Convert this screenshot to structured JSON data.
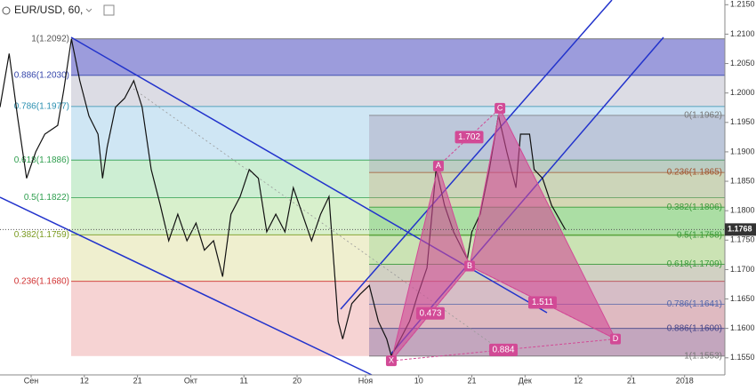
{
  "header": {
    "symbol": "EUR/USD, 60,"
  },
  "chart_data": {
    "type": "line",
    "color": "#111111",
    "x": [
      -4.1,
      -2.9,
      -1.8,
      -0.6,
      0.6,
      1.8,
      3.5,
      4.3,
      5.3,
      6.4,
      7.6,
      8.8,
      9.4,
      10.0,
      11.1,
      12.3,
      13.5,
      14.6,
      15.8,
      17.0,
      18.1,
      19.3,
      20.5,
      21.7,
      22.8,
      24.0,
      25.2,
      26.3,
      27.5,
      28.7,
      29.9,
      31.0,
      32.2,
      33.4,
      34.5,
      35.7,
      36.9,
      38.1,
      39.2,
      39.8,
      40.4,
      41.0,
      42.2,
      43.3,
      44.5,
      45.7,
      46.8,
      47.4,
      48.6,
      49.8,
      50.9,
      52.1,
      53.3,
      54.4,
      55.6,
      56.8,
      57.4,
      58.0,
      59.1,
      60.3,
      61.5,
      62.6,
      63.8,
      64.4,
      65.6,
      66.2,
      67.3,
      68.5,
      70.3
    ],
    "values": [
      1.1976,
      1.2067,
      1.1961,
      1.1855,
      1.19,
      1.193,
      1.1945,
      1.2006,
      1.2092,
      1.2021,
      1.1961,
      1.193,
      1.1855,
      1.1908,
      1.1976,
      1.1991,
      1.2021,
      1.1976,
      1.187,
      1.1809,
      1.1749,
      1.1794,
      1.1749,
      1.1779,
      1.1733,
      1.1749,
      1.1688,
      1.1794,
      1.1824,
      1.187,
      1.1855,
      1.1764,
      1.1794,
      1.1764,
      1.1839,
      1.1794,
      1.1749,
      1.1794,
      1.1824,
      1.1718,
      1.1612,
      1.1582,
      1.1642,
      1.1658,
      1.1673,
      1.1612,
      1.1582,
      1.1553,
      1.1582,
      1.1612,
      1.1658,
      1.1703,
      1.1872,
      1.1809,
      1.1764,
      1.1733,
      1.1718,
      1.1764,
      1.1794,
      1.187,
      1.1962,
      1.19,
      1.1839,
      1.193,
      1.193,
      1.187,
      1.1855,
      1.1809,
      1.1768
    ],
    "xlim": [
      -4.1,
      91.3
    ],
    "xticks": [
      {
        "value": 0,
        "label": "Сен"
      },
      {
        "value": 7,
        "label": "12"
      },
      {
        "value": 14,
        "label": "21"
      },
      {
        "value": 21,
        "label": "Окт"
      },
      {
        "value": 28,
        "label": "11"
      },
      {
        "value": 35,
        "label": "20"
      },
      {
        "value": 44,
        "label": "Ноя"
      },
      {
        "value": 51,
        "label": "10"
      },
      {
        "value": 58,
        "label": "21"
      },
      {
        "value": 65,
        "label": "Дек"
      },
      {
        "value": 72,
        "label": "12"
      },
      {
        "value": 79,
        "label": "21"
      },
      {
        "value": 86,
        "label": "2018"
      }
    ],
    "ylim": [
      1.1521,
      1.2158
    ],
    "yticks": [
      {
        "value": 1.215,
        "label": "1.2150"
      },
      {
        "value": 1.21,
        "label": "1.2100"
      },
      {
        "value": 1.205,
        "label": "1.2050"
      },
      {
        "value": 1.2,
        "label": "1.2000"
      },
      {
        "value": 1.195,
        "label": "1.1950"
      },
      {
        "value": 1.19,
        "label": "1.1900"
      },
      {
        "value": 1.185,
        "label": "1.1850"
      },
      {
        "value": 1.18,
        "label": "1.1800"
      },
      {
        "value": 1.175,
        "label": "1.1750"
      },
      {
        "value": 1.17,
        "label": "1.1700"
      },
      {
        "value": 1.165,
        "label": "1.1650"
      },
      {
        "value": 1.16,
        "label": "1.1600"
      },
      {
        "value": 1.155,
        "label": "1.1550"
      }
    ],
    "last_price": {
      "value": 1.1768,
      "label": "1.1768"
    },
    "fib_left": {
      "levels": [
        {
          "value": 1.2092,
          "label": "1(1.2092)"
        },
        {
          "value": 1.203,
          "label": "0.886(1.2030)"
        },
        {
          "value": 1.1977,
          "label": "0.786(1.1977)"
        },
        {
          "value": 1.1886,
          "label": "0.618(1.1886)"
        },
        {
          "value": 1.1822,
          "label": "0.5(1.1822)"
        },
        {
          "value": 1.1759,
          "label": "0.382(1.1759)"
        },
        {
          "value": 1.168,
          "label": "0.236(1.1680)"
        }
      ],
      "band_colors": [
        "#9c9cdc",
        "#dcdce4",
        "#cfe6f4",
        "#cdeed3",
        "#d8f0cc",
        "#efefcf",
        "#f6d3d3"
      ],
      "label_colors": [
        "#555555",
        "#3344aa",
        "#2a8fb0",
        "#2e9e4e",
        "#2e9e4e",
        "#7a9a20",
        "#d03030"
      ]
    },
    "fib_right": {
      "levels": [
        {
          "value": 1.1962,
          "label": "0(1.1962)"
        },
        {
          "value": 1.1865,
          "label": "0.236(1.1865)"
        },
        {
          "value": 1.1806,
          "label": "0.382(1.1806)"
        },
        {
          "value": 1.1758,
          "label": "0.5(1.1758)"
        },
        {
          "value": 1.1709,
          "label": "0.618(1.1709)"
        },
        {
          "value": 1.1641,
          "label": "0.786(1.1641)"
        },
        {
          "value": 1.16,
          "label": "0.886(1.1600)"
        },
        {
          "value": 1.1553,
          "label": "1(1.1553)"
        }
      ],
      "band_colors": [
        "rgba(150,130,160,0.30)",
        "rgba(200,150,120,0.28)",
        "rgba(90,190,90,0.35)",
        "rgba(120,200,120,0.30)",
        "rgba(140,140,170,0.30)",
        "rgba(180,140,160,0.35)",
        "rgba(120,100,160,0.40)"
      ],
      "label_colors": [
        "#777777",
        "#a0522d",
        "#3a9a3a",
        "#3a9a3a",
        "#3a9a3a",
        "#5566aa",
        "#444488",
        "#777777"
      ]
    },
    "pattern": {
      "color": "#d24a96",
      "points": [
        {
          "label": "X",
          "x": 47.4,
          "y": 1.1545
        },
        {
          "label": "A",
          "x": 53.6,
          "y": 1.1876
        },
        {
          "label": "B",
          "x": 57.7,
          "y": 1.1706
        },
        {
          "label": "C",
          "x": 61.7,
          "y": 1.1974
        },
        {
          "label": "D",
          "x": 76.9,
          "y": 1.1582
        }
      ],
      "ratios": [
        1.702,
        0.473,
        1.511,
        0.884
      ]
    }
  }
}
